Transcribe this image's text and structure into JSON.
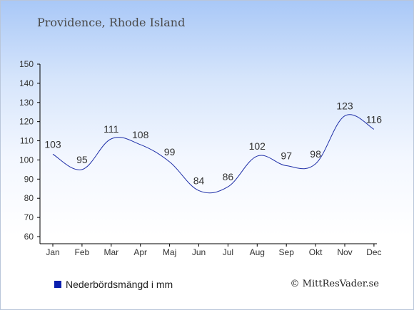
{
  "header": {
    "title": "Providence, Rhode Island"
  },
  "legend": {
    "label": "Nederbördsmängd i mm"
  },
  "footer": {
    "copyright": "© MittResVader.se"
  },
  "colors": {
    "line": "#1f2fa8",
    "swatch": "#0a1fae",
    "axis": "#000000",
    "text": "#333333"
  },
  "chart_data": {
    "type": "line",
    "title": "Providence, Rhode Island",
    "categories": [
      "Jan",
      "Feb",
      "Mar",
      "Apr",
      "Maj",
      "Jun",
      "Jul",
      "Aug",
      "Sep",
      "Okt",
      "Nov",
      "Dec"
    ],
    "series": [
      {
        "name": "Nederbördsmängd i mm",
        "values": [
          103,
          95,
          111,
          108,
          99,
          84,
          86,
          102,
          97,
          98,
          123,
          116
        ]
      }
    ],
    "ylim": [
      60,
      150
    ],
    "yticks": [
      60,
      70,
      80,
      90,
      100,
      110,
      120,
      130,
      140,
      150
    ],
    "grid": false,
    "data_labels": true,
    "legend_position": "bottom-left"
  }
}
